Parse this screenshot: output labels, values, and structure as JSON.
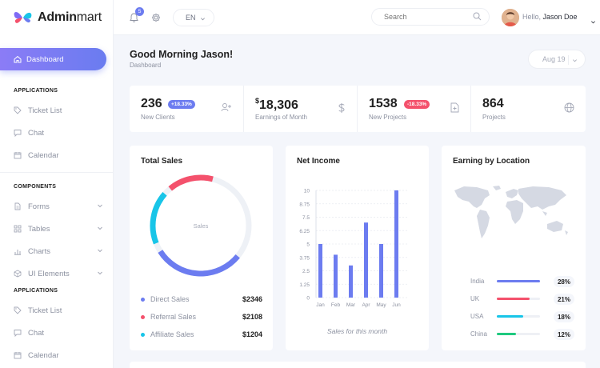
{
  "app": {
    "logo_bold": "Admin",
    "logo_light": "mart"
  },
  "colors": {
    "accent": "#6c7cf0",
    "red": "#f4516c",
    "cyan": "#18c5e8",
    "green": "#1fc97f"
  },
  "sidebar": {
    "active": {
      "label": "Dashboard",
      "icon": "home-icon"
    },
    "sections": [
      {
        "title": "APPLICATIONS",
        "items": [
          {
            "label": "Ticket List",
            "icon": "tag-icon"
          },
          {
            "label": "Chat",
            "icon": "chat-icon"
          },
          {
            "label": "Calendar",
            "icon": "calendar-icon"
          }
        ]
      },
      {
        "title": "COMPONENTS",
        "items": [
          {
            "label": "Forms",
            "icon": "document-icon"
          },
          {
            "label": "Tables",
            "icon": "grid-icon"
          },
          {
            "label": "Charts",
            "icon": "bar-chart-icon"
          },
          {
            "label": "UI Elements",
            "icon": "cube-icon"
          }
        ]
      },
      {
        "title": "APPLICATIONS",
        "items": [
          {
            "label": "Ticket List",
            "icon": "tag-icon"
          },
          {
            "label": "Chat",
            "icon": "chat-icon"
          },
          {
            "label": "Calendar",
            "icon": "calendar-icon"
          }
        ]
      }
    ]
  },
  "topbar": {
    "notification_count": "5",
    "language": "EN",
    "search_placeholder": "Search",
    "greeting": "Hello,",
    "user_name": "Jason Doe"
  },
  "header": {
    "title": "Good Morning Jason!",
    "breadcrumb": "Dashboard",
    "date": "Aug 19"
  },
  "stats": [
    {
      "value": "236",
      "label": "New Clients",
      "change": "+18.33%",
      "icon": "add-user-icon"
    },
    {
      "currency": "$",
      "value": "18,306",
      "label": "Earnings of Month",
      "icon": "dollar-icon"
    },
    {
      "value": "1538",
      "label": "New Projects",
      "change": "-18.33%",
      "icon": "file-icon"
    },
    {
      "value": "864",
      "label": "Projects",
      "icon": "globe-icon"
    }
  ],
  "total_sales": {
    "title": "Total Sales",
    "center_label": "Sales",
    "items": [
      {
        "label": "Direct Sales",
        "value": "$2346"
      },
      {
        "label": "Referral Sales",
        "value": "$2108"
      },
      {
        "label": "Affiliate Sales",
        "value": "$1204"
      }
    ]
  },
  "net_income": {
    "title": "Net Income",
    "caption": "Sales for this month"
  },
  "earning_location": {
    "title": "Earning by Location",
    "rows": [
      {
        "country": "India",
        "percent": "28%",
        "fill": 1.0
      },
      {
        "country": "UK",
        "percent": "21%",
        "fill": 0.75
      },
      {
        "country": "USA",
        "percent": "18%",
        "fill": 0.62
      },
      {
        "country": "China",
        "percent": "12%",
        "fill": 0.45
      }
    ]
  },
  "chart_data": [
    {
      "type": "pie",
      "title": "Total Sales",
      "center_label": "Sales",
      "categories": [
        "Direct Sales",
        "Referral Sales",
        "Affiliate Sales"
      ],
      "values": [
        2346,
        2108,
        1204
      ],
      "colors": [
        "#6c7cf0",
        "#f4516c",
        "#18c5e8"
      ]
    },
    {
      "type": "bar",
      "title": "Net Income",
      "categories": [
        "Jan",
        "Feb",
        "Mar",
        "Apr",
        "May",
        "Jun"
      ],
      "values": [
        5,
        4,
        3,
        7,
        5,
        10
      ],
      "yticks": [
        "0",
        "1.25",
        "2.5",
        "3.75",
        "5",
        "6.25",
        "7.5",
        "8.75",
        "10"
      ],
      "ylim": [
        0,
        10
      ],
      "xlabel": "Sales for this month",
      "grid": true,
      "color": "#6c7cf0"
    }
  ]
}
